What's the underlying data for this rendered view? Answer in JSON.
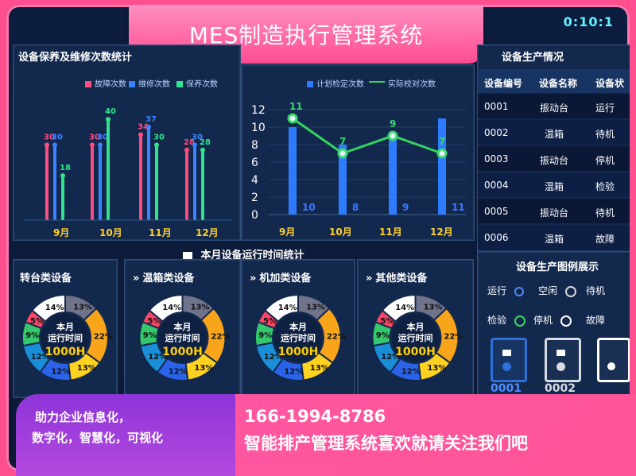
{
  "header": {
    "title": "MES制造执行管理系统",
    "clock": "0:10:1"
  },
  "panels": {
    "maintenance_title": "设备保养及维修次数统计",
    "inspection_title": "",
    "production_title": "设备生产情况",
    "runtime_title": "本月设备运行时间统计",
    "status_legend_title": "设备生产图例展示"
  },
  "legends": {
    "maintenance": [
      "故障次数",
      "维修次数",
      "保养次数"
    ],
    "inspection": [
      "计划检定次数",
      "实际校对次数"
    ]
  },
  "chart_data": [
    {
      "type": "bar",
      "categories": [
        "9月",
        "10月",
        "11月",
        "12月"
      ],
      "series": [
        {
          "name": "故障次数",
          "values": [
            30,
            30,
            34,
            28
          ]
        },
        {
          "name": "维修次数",
          "values": [
            30,
            30,
            37,
            30
          ]
        },
        {
          "name": "保养次数",
          "values": [
            18,
            40,
            30,
            28
          ]
        }
      ],
      "ylim": [
        0,
        45
      ]
    },
    {
      "type": "bar",
      "categories": [
        "9月",
        "10月",
        "11月",
        "12月"
      ],
      "series": [
        {
          "name": "计划检定次数",
          "values": [
            10,
            8,
            9,
            11
          ]
        },
        {
          "name": "实际校对次数",
          "values": [
            11,
            7,
            9,
            7
          ]
        }
      ],
      "y_ticks": [
        0,
        2,
        4,
        6,
        8,
        10,
        12
      ],
      "ylim": [
        0,
        12
      ]
    }
  ],
  "runtime_cards": [
    {
      "title": "转台类设备",
      "center_line1": "本月",
      "center_line2": "运行时间",
      "center_value": "1000H",
      "segments": [
        13,
        22,
        13,
        12,
        12,
        9,
        5,
        14
      ]
    },
    {
      "title": "温箱类设备",
      "center_line1": "本月",
      "center_line2": "运行时间",
      "center_value": "1000H",
      "segments": [
        13,
        22,
        13,
        12,
        12,
        9,
        5,
        14
      ]
    },
    {
      "title": "机加类设备",
      "center_line1": "本月",
      "center_line2": "运行时间",
      "center_value": "1000H",
      "segments": [
        13,
        22,
        13,
        12,
        12,
        9,
        5,
        14
      ]
    },
    {
      "title": "其他类设备",
      "center_line1": "本月",
      "center_line2": "运行时间",
      "center_value": "1000H",
      "segments": [
        13,
        22,
        13,
        12,
        12,
        9,
        5,
        14
      ]
    }
  ],
  "production_table": {
    "headers": [
      "设备编号",
      "设备名称",
      "设备状"
    ],
    "rows": [
      [
        "0001",
        "振动台",
        "运行"
      ],
      [
        "0002",
        "温箱",
        "待机"
      ],
      [
        "0003",
        "振动台",
        "停机"
      ],
      [
        "0004",
        "温箱",
        "检验"
      ],
      [
        "0005",
        "振动台",
        "待机"
      ],
      [
        "0006",
        "温箱",
        "故障"
      ]
    ]
  },
  "status_legend": [
    {
      "label": "运行",
      "color": "#4d8cff"
    },
    {
      "label": "空闲",
      "color": "#d3d3d3"
    },
    {
      "label": "待机",
      "color": "#ffffff"
    },
    {
      "label": "检验",
      "color": "#37d95e"
    },
    {
      "label": "停机",
      "color": "#ffffff"
    },
    {
      "label": "故障",
      "color": "#ffffff"
    }
  ],
  "machine_ids": [
    "0001",
    "0002"
  ],
  "footer": {
    "left_line1": "助力企业信息化，",
    "left_line2": "数字化，智慧化，可视化",
    "phone": "166-1994-8786",
    "slogan": "智能排产管理系统喜欢就请关注我们吧"
  }
}
